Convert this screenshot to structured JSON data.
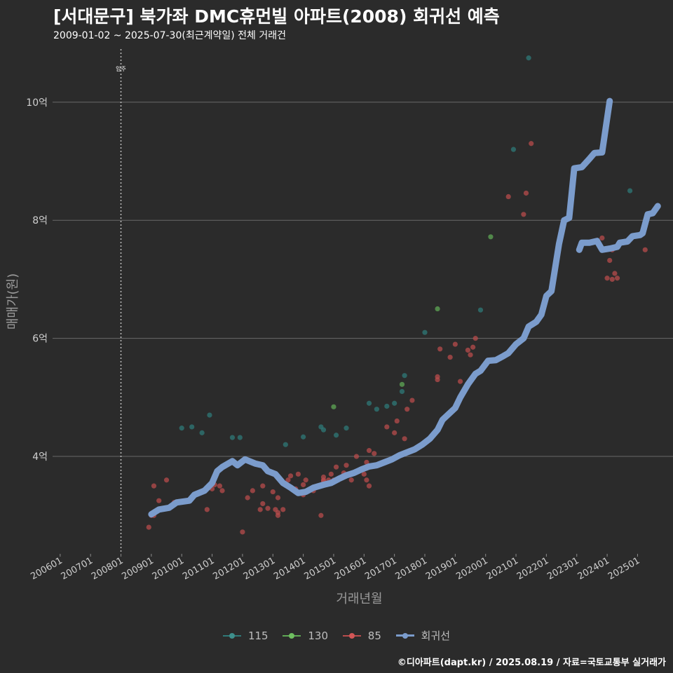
{
  "header": {
    "title": "[서대문구] 북가좌 DMC휴먼빌 아파트(2008) 회귀선 예측",
    "subtitle": "2009-01-02 ~ 2025-07-30(최근계약일) 전체 거래건"
  },
  "caption": "©디아파트(dapt.kr) / 2025.08.19 / 자료=국토교통부 실거래가",
  "chart_data": {
    "type": "scatter",
    "xlabel": "거래년월",
    "ylabel": "매매가(원)",
    "xlim": [
      "2005-10",
      "2026-03"
    ],
    "ylim": [
      2.35,
      10.9
    ],
    "y_ticks": [
      4,
      6,
      8,
      10
    ],
    "y_tick_labels": [
      "4억",
      "6억",
      "8억",
      "10억"
    ],
    "x_tick_labels": [
      "200601",
      "200701",
      "200801",
      "200901",
      "201001",
      "201101",
      "201201",
      "201301",
      "201401",
      "201501",
      "201601",
      "201701",
      "201801",
      "201901",
      "202001",
      "202101",
      "202201",
      "202301",
      "202401",
      "202501"
    ],
    "annotation": {
      "x": "2008-01",
      "label": "입주"
    },
    "grid": true,
    "legend_position": "bottom",
    "legend": [
      {
        "name": "115",
        "color": "#3e8f8c"
      },
      {
        "name": "130",
        "color": "#6fbf60"
      },
      {
        "name": "85",
        "color": "#d25656"
      },
      {
        "name": "회귀선",
        "color": "#7b9ccc"
      }
    ],
    "series": [
      {
        "name": "115",
        "color": "#2f7a78",
        "points": [
          [
            "2010-01",
            4.48
          ],
          [
            "2010-05",
            4.5
          ],
          [
            "2010-09",
            4.4
          ],
          [
            "2010-12",
            4.7
          ],
          [
            "2011-09",
            4.32
          ],
          [
            "2011-12",
            4.32
          ],
          [
            "2013-06",
            4.2
          ],
          [
            "2014-01",
            4.33
          ],
          [
            "2014-08",
            4.5
          ],
          [
            "2014-09",
            4.45
          ],
          [
            "2015-02",
            4.36
          ],
          [
            "2015-06",
            4.48
          ],
          [
            "2016-03",
            4.9
          ],
          [
            "2016-06",
            4.8
          ],
          [
            "2016-10",
            4.85
          ],
          [
            "2017-01",
            4.9
          ],
          [
            "2017-04",
            5.1
          ],
          [
            "2017-05",
            5.37
          ],
          [
            "2018-01",
            6.1
          ],
          [
            "2019-11",
            6.48
          ],
          [
            "2020-12",
            9.2
          ],
          [
            "2021-06",
            10.75
          ],
          [
            "2024-10",
            8.5
          ]
        ]
      },
      {
        "name": "130",
        "color": "#5fa855",
        "points": [
          [
            "2015-01",
            4.84
          ],
          [
            "2017-04",
            5.22
          ],
          [
            "2018-06",
            6.5
          ],
          [
            "2020-03",
            7.72
          ]
        ]
      },
      {
        "name": "85",
        "color": "#b84c4c",
        "points": [
          [
            "2008-12",
            2.8
          ],
          [
            "2009-01",
            3.0
          ],
          [
            "2009-02",
            3.0
          ],
          [
            "2009-02",
            3.5
          ],
          [
            "2009-04",
            3.25
          ],
          [
            "2009-07",
            3.6
          ],
          [
            "2009-10",
            3.22
          ],
          [
            "2010-11",
            3.1
          ],
          [
            "2011-01",
            3.45
          ],
          [
            "2011-02",
            3.52
          ],
          [
            "2011-04",
            3.5
          ],
          [
            "2011-05",
            3.42
          ],
          [
            "2012-01",
            2.72
          ],
          [
            "2012-03",
            3.3
          ],
          [
            "2012-05",
            3.42
          ],
          [
            "2012-08",
            3.1
          ],
          [
            "2012-09",
            3.2
          ],
          [
            "2012-09",
            3.5
          ],
          [
            "2012-11",
            3.12
          ],
          [
            "2013-01",
            3.4
          ],
          [
            "2013-02",
            3.1
          ],
          [
            "2013-03",
            3.0
          ],
          [
            "2013-03",
            3.05
          ],
          [
            "2013-03",
            3.3
          ],
          [
            "2013-05",
            3.1
          ],
          [
            "2013-07",
            3.6
          ],
          [
            "2013-08",
            3.67
          ],
          [
            "2013-10",
            3.45
          ],
          [
            "2013-11",
            3.7
          ],
          [
            "2014-01",
            3.35
          ],
          [
            "2014-01",
            3.52
          ],
          [
            "2014-02",
            3.6
          ],
          [
            "2014-05",
            3.42
          ],
          [
            "2014-06",
            3.47
          ],
          [
            "2014-08",
            3.0
          ],
          [
            "2014-09",
            3.6
          ],
          [
            "2014-09",
            3.58
          ],
          [
            "2014-09",
            3.65
          ],
          [
            "2014-11",
            3.6
          ],
          [
            "2014-12",
            3.7
          ],
          [
            "2015-01",
            3.6
          ],
          [
            "2015-02",
            3.82
          ],
          [
            "2015-05",
            3.72
          ],
          [
            "2015-06",
            3.85
          ],
          [
            "2015-08",
            3.6
          ],
          [
            "2015-10",
            4.0
          ],
          [
            "2016-01",
            3.7
          ],
          [
            "2016-02",
            3.9
          ],
          [
            "2016-02",
            3.8
          ],
          [
            "2016-02",
            3.6
          ],
          [
            "2016-03",
            3.5
          ],
          [
            "2016-03",
            4.1
          ],
          [
            "2016-05",
            4.05
          ],
          [
            "2016-10",
            4.5
          ],
          [
            "2017-01",
            4.4
          ],
          [
            "2017-02",
            4.6
          ],
          [
            "2017-05",
            4.3
          ],
          [
            "2017-06",
            4.8
          ],
          [
            "2017-08",
            4.95
          ],
          [
            "2018-06",
            5.35
          ],
          [
            "2018-06",
            5.3
          ],
          [
            "2018-07",
            5.82
          ],
          [
            "2018-11",
            5.68
          ],
          [
            "2019-01",
            5.9
          ],
          [
            "2019-03",
            5.27
          ],
          [
            "2019-06",
            5.8
          ],
          [
            "2019-07",
            5.72
          ],
          [
            "2019-08",
            5.85
          ],
          [
            "2019-09",
            6.0
          ],
          [
            "2020-10",
            8.4
          ],
          [
            "2021-04",
            8.1
          ],
          [
            "2021-05",
            8.46
          ],
          [
            "2021-07",
            9.3
          ],
          [
            "2023-11",
            7.7
          ],
          [
            "2024-01",
            7.02
          ],
          [
            "2024-02",
            7.32
          ],
          [
            "2024-03",
            7.5
          ],
          [
            "2024-03",
            7.0
          ],
          [
            "2024-04",
            7.1
          ],
          [
            "2024-05",
            7.02
          ],
          [
            "2025-04",
            7.5
          ],
          [
            "2025-04",
            7.98
          ]
        ]
      }
    ],
    "regression": [
      [
        [
          "2009-01",
          3.02
        ],
        [
          "2009-04",
          3.1
        ],
        [
          "2009-08",
          3.13
        ],
        [
          "2009-11",
          3.22
        ],
        [
          "2010-04",
          3.25
        ],
        [
          "2010-06",
          3.35
        ],
        [
          "2010-10",
          3.42
        ],
        [
          "2011-01",
          3.55
        ],
        [
          "2011-03",
          3.75
        ],
        [
          "2011-05",
          3.82
        ],
        [
          "2011-09",
          3.92
        ],
        [
          "2011-11",
          3.85
        ],
        [
          "2012-02",
          3.95
        ],
        [
          "2012-06",
          3.88
        ],
        [
          "2012-09",
          3.85
        ],
        [
          "2012-11",
          3.75
        ],
        [
          "2013-02",
          3.7
        ],
        [
          "2013-05",
          3.55
        ],
        [
          "2013-08",
          3.47
        ],
        [
          "2013-11",
          3.38
        ],
        [
          "2014-02",
          3.4
        ],
        [
          "2014-05",
          3.47
        ],
        [
          "2014-09",
          3.52
        ],
        [
          "2014-12",
          3.55
        ],
        [
          "2015-03",
          3.62
        ],
        [
          "2015-06",
          3.68
        ],
        [
          "2015-09",
          3.72
        ],
        [
          "2015-12",
          3.78
        ],
        [
          "2016-03",
          3.83
        ],
        [
          "2016-06",
          3.85
        ],
        [
          "2016-09",
          3.9
        ],
        [
          "2016-12",
          3.95
        ],
        [
          "2017-03",
          4.02
        ],
        [
          "2017-06",
          4.07
        ],
        [
          "2017-09",
          4.12
        ],
        [
          "2017-12",
          4.2
        ],
        [
          "2018-03",
          4.3
        ],
        [
          "2018-06",
          4.45
        ],
        [
          "2018-08",
          4.62
        ],
        [
          "2018-10",
          4.7
        ],
        [
          "2019-01",
          4.82
        ],
        [
          "2019-03",
          5.0
        ],
        [
          "2019-06",
          5.22
        ],
        [
          "2019-09",
          5.4
        ],
        [
          "2019-11",
          5.45
        ],
        [
          "2020-02",
          5.62
        ],
        [
          "2020-05",
          5.63
        ],
        [
          "2020-08",
          5.7
        ],
        [
          "2020-10",
          5.75
        ],
        [
          "2021-01",
          5.9
        ],
        [
          "2021-04",
          6.0
        ],
        [
          "2021-06",
          6.2
        ],
        [
          "2021-09",
          6.28
        ],
        [
          "2021-11",
          6.4
        ],
        [
          "2022-01",
          6.72
        ],
        [
          "2022-03",
          6.8
        ],
        [
          "2022-06",
          7.6
        ],
        [
          "2022-08",
          8.0
        ],
        [
          "2022-10",
          8.04
        ],
        [
          "2022-12",
          8.88
        ],
        [
          "2023-03",
          8.9
        ],
        [
          "2023-06",
          9.04
        ],
        [
          "2023-08",
          9.14
        ],
        [
          "2023-11",
          9.15
        ],
        [
          "2024-02",
          10.02
        ]
      ],
      [
        [
          "2023-02",
          7.5
        ],
        [
          "2023-03",
          7.62
        ],
        [
          "2023-06",
          7.62
        ],
        [
          "2023-09",
          7.65
        ],
        [
          "2023-11",
          7.5
        ],
        [
          "2024-02",
          7.52
        ],
        [
          "2024-05",
          7.55
        ],
        [
          "2024-06",
          7.62
        ],
        [
          "2024-09",
          7.64
        ],
        [
          "2024-11",
          7.73
        ],
        [
          "2025-02",
          7.75
        ],
        [
          "2025-03",
          7.78
        ],
        [
          "2025-05",
          8.1
        ],
        [
          "2025-07",
          8.12
        ],
        [
          "2025-09",
          8.24
        ]
      ]
    ]
  }
}
